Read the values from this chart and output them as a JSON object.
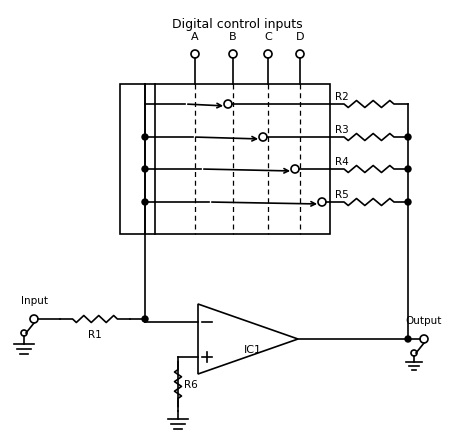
{
  "title": "Digital control inputs",
  "bg_color": "#ffffff",
  "fg_color": "#000000",
  "figsize": [
    4.74,
    4.39
  ],
  "dpi": 100,
  "ctrl_labels": [
    "A",
    "B",
    "C",
    "D"
  ],
  "res_labels": [
    "R2",
    "R3",
    "R4",
    "R5"
  ],
  "r1_label": "R1",
  "r6_label": "R6",
  "ic1_label": "IC1",
  "input_label": "Input",
  "output_label": "Output"
}
